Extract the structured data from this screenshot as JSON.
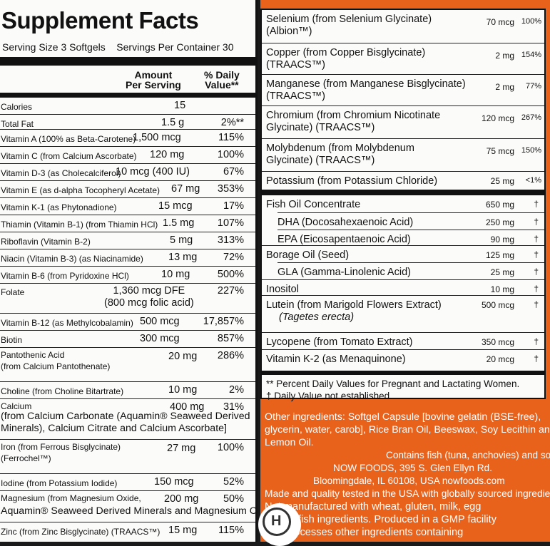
{
  "left": {
    "title": "Supplement Facts",
    "serving_line": "Serving Size 3 Softgels    Servings Per Container 30",
    "header": {
      "amount": "Amount\nPer Serving",
      "dv": "% Daily\nValue**"
    },
    "rows": [
      {
        "name": "Calories",
        "amount": "15",
        "dv": ""
      },
      {
        "name": "Total Fat",
        "amount": "1.5 g",
        "dv": "2%**"
      },
      {
        "name": "Vitamin A (100% as Beta-Carotene)",
        "amount": "1,500 mcg",
        "dv": "115%"
      },
      {
        "name": "Vitamin C (from Calcium Ascorbate)",
        "amount": "120 mg",
        "dv": "100%"
      },
      {
        "name": "Vitamin D-3 (as Cholecalciferol)",
        "amount": "10 mcg (400 IU)",
        "dv": "67%"
      },
      {
        "name": "Vitamin E (as d-alpha Tocopheryl Acetate)",
        "amount": "67 mg",
        "dv": "353%"
      },
      {
        "name": "Vitamin K-1 (as Phytonadione)",
        "amount": "15 mcg",
        "dv": "17%"
      },
      {
        "name": "Thiamin (Vitamin B-1) (from Thiamin HCl)",
        "amount": "1.5 mg",
        "dv": "107%"
      },
      {
        "name": "Riboflavin (Vitamin B-2)",
        "amount": "5 mg",
        "dv": "313%"
      },
      {
        "name": "Niacin (Vitamin B-3) (as Niacinamide)",
        "amount": "13 mg",
        "dv": "72%"
      },
      {
        "name": "Vitamin B-6 (from Pyridoxine HCl)",
        "amount": "10 mg",
        "dv": "500%"
      },
      {
        "name": "Folate",
        "amount": "1,360 mcg DFE\n(800 mcg folic acid)",
        "dv": "227%"
      },
      {
        "name": "Vitamin B-12 (as Methylcobalamin)",
        "amount": "500 mcg",
        "dv": "17,857%"
      },
      {
        "name": "Biotin",
        "amount": "300 mcg",
        "dv": "857%"
      },
      {
        "name": "Pantothenic Acid\n(from Calcium Pantothenate)",
        "amount": "20 mg",
        "dv": "286%"
      },
      {
        "name": "Choline (from Choline Bitartrate)",
        "amount": "10 mg",
        "dv": "2%"
      },
      {
        "name": "Calcium",
        "amount": "400 mg",
        "dv": "31%"
      },
      {
        "name": "Iron (from Ferrous Bisglycinate)\n(Ferrochel™)",
        "amount": "27 mg",
        "dv": "100%"
      },
      {
        "name": "Iodine (from Potassium Iodide)",
        "amount": "150 mcg",
        "dv": "52%"
      },
      {
        "name": "Magnesium (from Magnesium Oxide,",
        "amount": "200 mg",
        "dv": "50%"
      },
      {
        "name": "Zinc (from Zinc Bisglycinate) (TRAACS™)",
        "amount": "15 mg",
        "dv": "115%"
      }
    ],
    "calcium_sub": "(from Calcium Carbonate (Aquamin® Seaweed Derived\nMinerals), Calcium Citrate and Calcium Ascorbate]",
    "magnesium_sub": "Aquamin® Seaweed Derived Minerals and Magnesium Citrate)"
  },
  "right": {
    "rows": [
      {
        "name": "Selenium (from Selenium Glycinate)\n(Albion™)",
        "amount": "70 mcg",
        "dv": "100%"
      },
      {
        "name": "Copper (from Copper Bisglycinate)\n(TRAACS™)",
        "amount": "2 mg",
        "dv": "154%"
      },
      {
        "name": "Manganese (from Manganese Bisglycinate)\n(TRAACS™)",
        "amount": "2 mg",
        "dv": "77%"
      },
      {
        "name": "Chromium (from Chromium Nicotinate\nGlycinate) (TRAACS™)",
        "amount": "120 mcg",
        "dv": "267%"
      },
      {
        "name": "Molybdenum (from Molybdenum\nGlycinate) (TRAACS™)",
        "amount": "75 mcg",
        "dv": "150%"
      },
      {
        "name": "Potassium (from Potassium Chloride)",
        "amount": "25 mg",
        "dv": "<1%"
      }
    ],
    "rows2": [
      {
        "name": "Fish Oil Concentrate",
        "amount": "650 mg",
        "dv": "†",
        "indent": false
      },
      {
        "name": "DHA (Docosahexaenoic Acid)",
        "amount": "250 mg",
        "dv": "†",
        "indent": true
      },
      {
        "name": "EPA (Eicosapentaenoic Acid)",
        "amount": "90 mg",
        "dv": "†",
        "indent": true
      },
      {
        "name": "Borage Oil (Seed)",
        "amount": "125 mg",
        "dv": "†",
        "indent": false
      },
      {
        "name": "GLA (Gamma-Linolenic Acid)",
        "amount": "25 mg",
        "dv": "†",
        "indent": true
      },
      {
        "name": "Inositol",
        "amount": "10 mg",
        "dv": "†",
        "indent": false
      },
      {
        "name": "Lutein (from Marigold Flowers Extract)",
        "amount": "500 mcg",
        "dv": "†",
        "indent": false
      },
      {
        "name": "Lycopene (from Tomato Extract)",
        "amount": "350 mcg",
        "dv": "†",
        "indent": false
      },
      {
        "name": "Vitamin K-2 (as Menaquinone)",
        "amount": "20 mcg",
        "dv": "†",
        "indent": false
      }
    ],
    "lutein_sub": "(Tagetes erecta)",
    "footnote1": "** Percent Daily Values for Pregnant and Lactating Women.",
    "footnote2": "† Daily Value not established.",
    "other": [
      "Other ingredients: Softgel Capsule [bovine gelatin (BSE-free),",
      "glycerin, water, carob], Rice Bran Oil, Beeswax, Soy Lecithin and",
      "Lemon Oil.",
      "Contains fish (tuna, anchovies) and soy.",
      "NOW FOODS, 395 S. Glen Ellyn Rd.",
      "Bloomingdale, IL 60108, USA   nowfoods.com",
      "Made and quality tested in the USA with globally sourced ingredients.",
      "Not manufactured with wheat, gluten, milk, egg",
      "or shellfish ingredients. Produced in a GMP facility",
      "that processes other ingredients containing"
    ],
    "seal_letter": "H"
  }
}
